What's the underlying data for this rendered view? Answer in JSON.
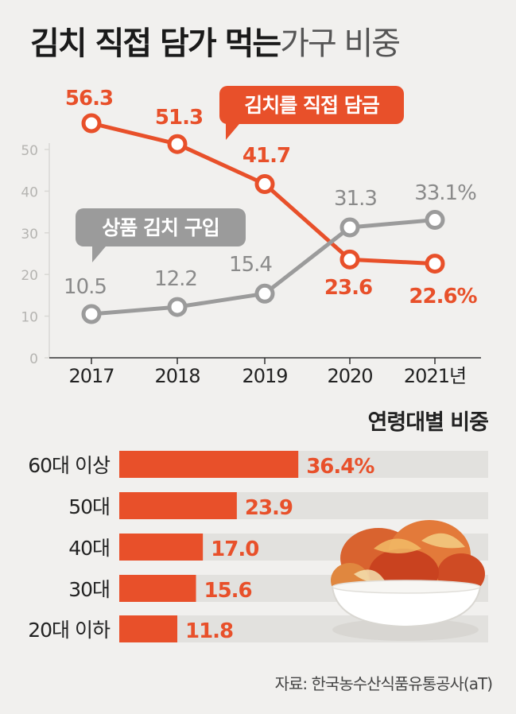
{
  "title": {
    "bold": "김치 직접 담가 먹는",
    "light": "가구 비중"
  },
  "colors": {
    "kimchi_direct": "#e8502a",
    "buy_kimchi": "#9b9b9b",
    "bar_track": "#e2e1de",
    "grid": "#d9d8d5"
  },
  "chart_data": [
    {
      "type": "line",
      "categories": [
        "2017",
        "2018",
        "2019",
        "2020",
        "2021년"
      ],
      "yticks": [
        "0",
        "10",
        "20",
        "30",
        "40",
        "50"
      ],
      "ylim": [
        0,
        56.3
      ],
      "series": [
        {
          "name": "김치를 직접 담금",
          "values": [
            56.3,
            51.3,
            41.7,
            23.6,
            22.6
          ],
          "labels": [
            "56.3",
            "51.3",
            "41.7",
            "23.6",
            "22.6%"
          ],
          "color": "#e8502a"
        },
        {
          "name": "상품 김치 구입",
          "values": [
            10.5,
            12.2,
            15.4,
            31.3,
            33.1
          ],
          "labels": [
            "10.5",
            "12.2",
            "15.4",
            "31.3",
            "33.1%"
          ],
          "color": "#9b9b9b"
        }
      ]
    },
    {
      "type": "bar",
      "title": "연령대별 비중",
      "categories": [
        "60대 이상",
        "50대",
        "40대",
        "30대",
        "20대 이하"
      ],
      "values": [
        36.4,
        23.9,
        17.0,
        15.6,
        11.8
      ],
      "labels": [
        "36.4%",
        "23.9",
        "17.0",
        "15.6",
        "11.8"
      ]
    }
  ],
  "source": "자료: 한국농수산식품유통공사(aT)"
}
